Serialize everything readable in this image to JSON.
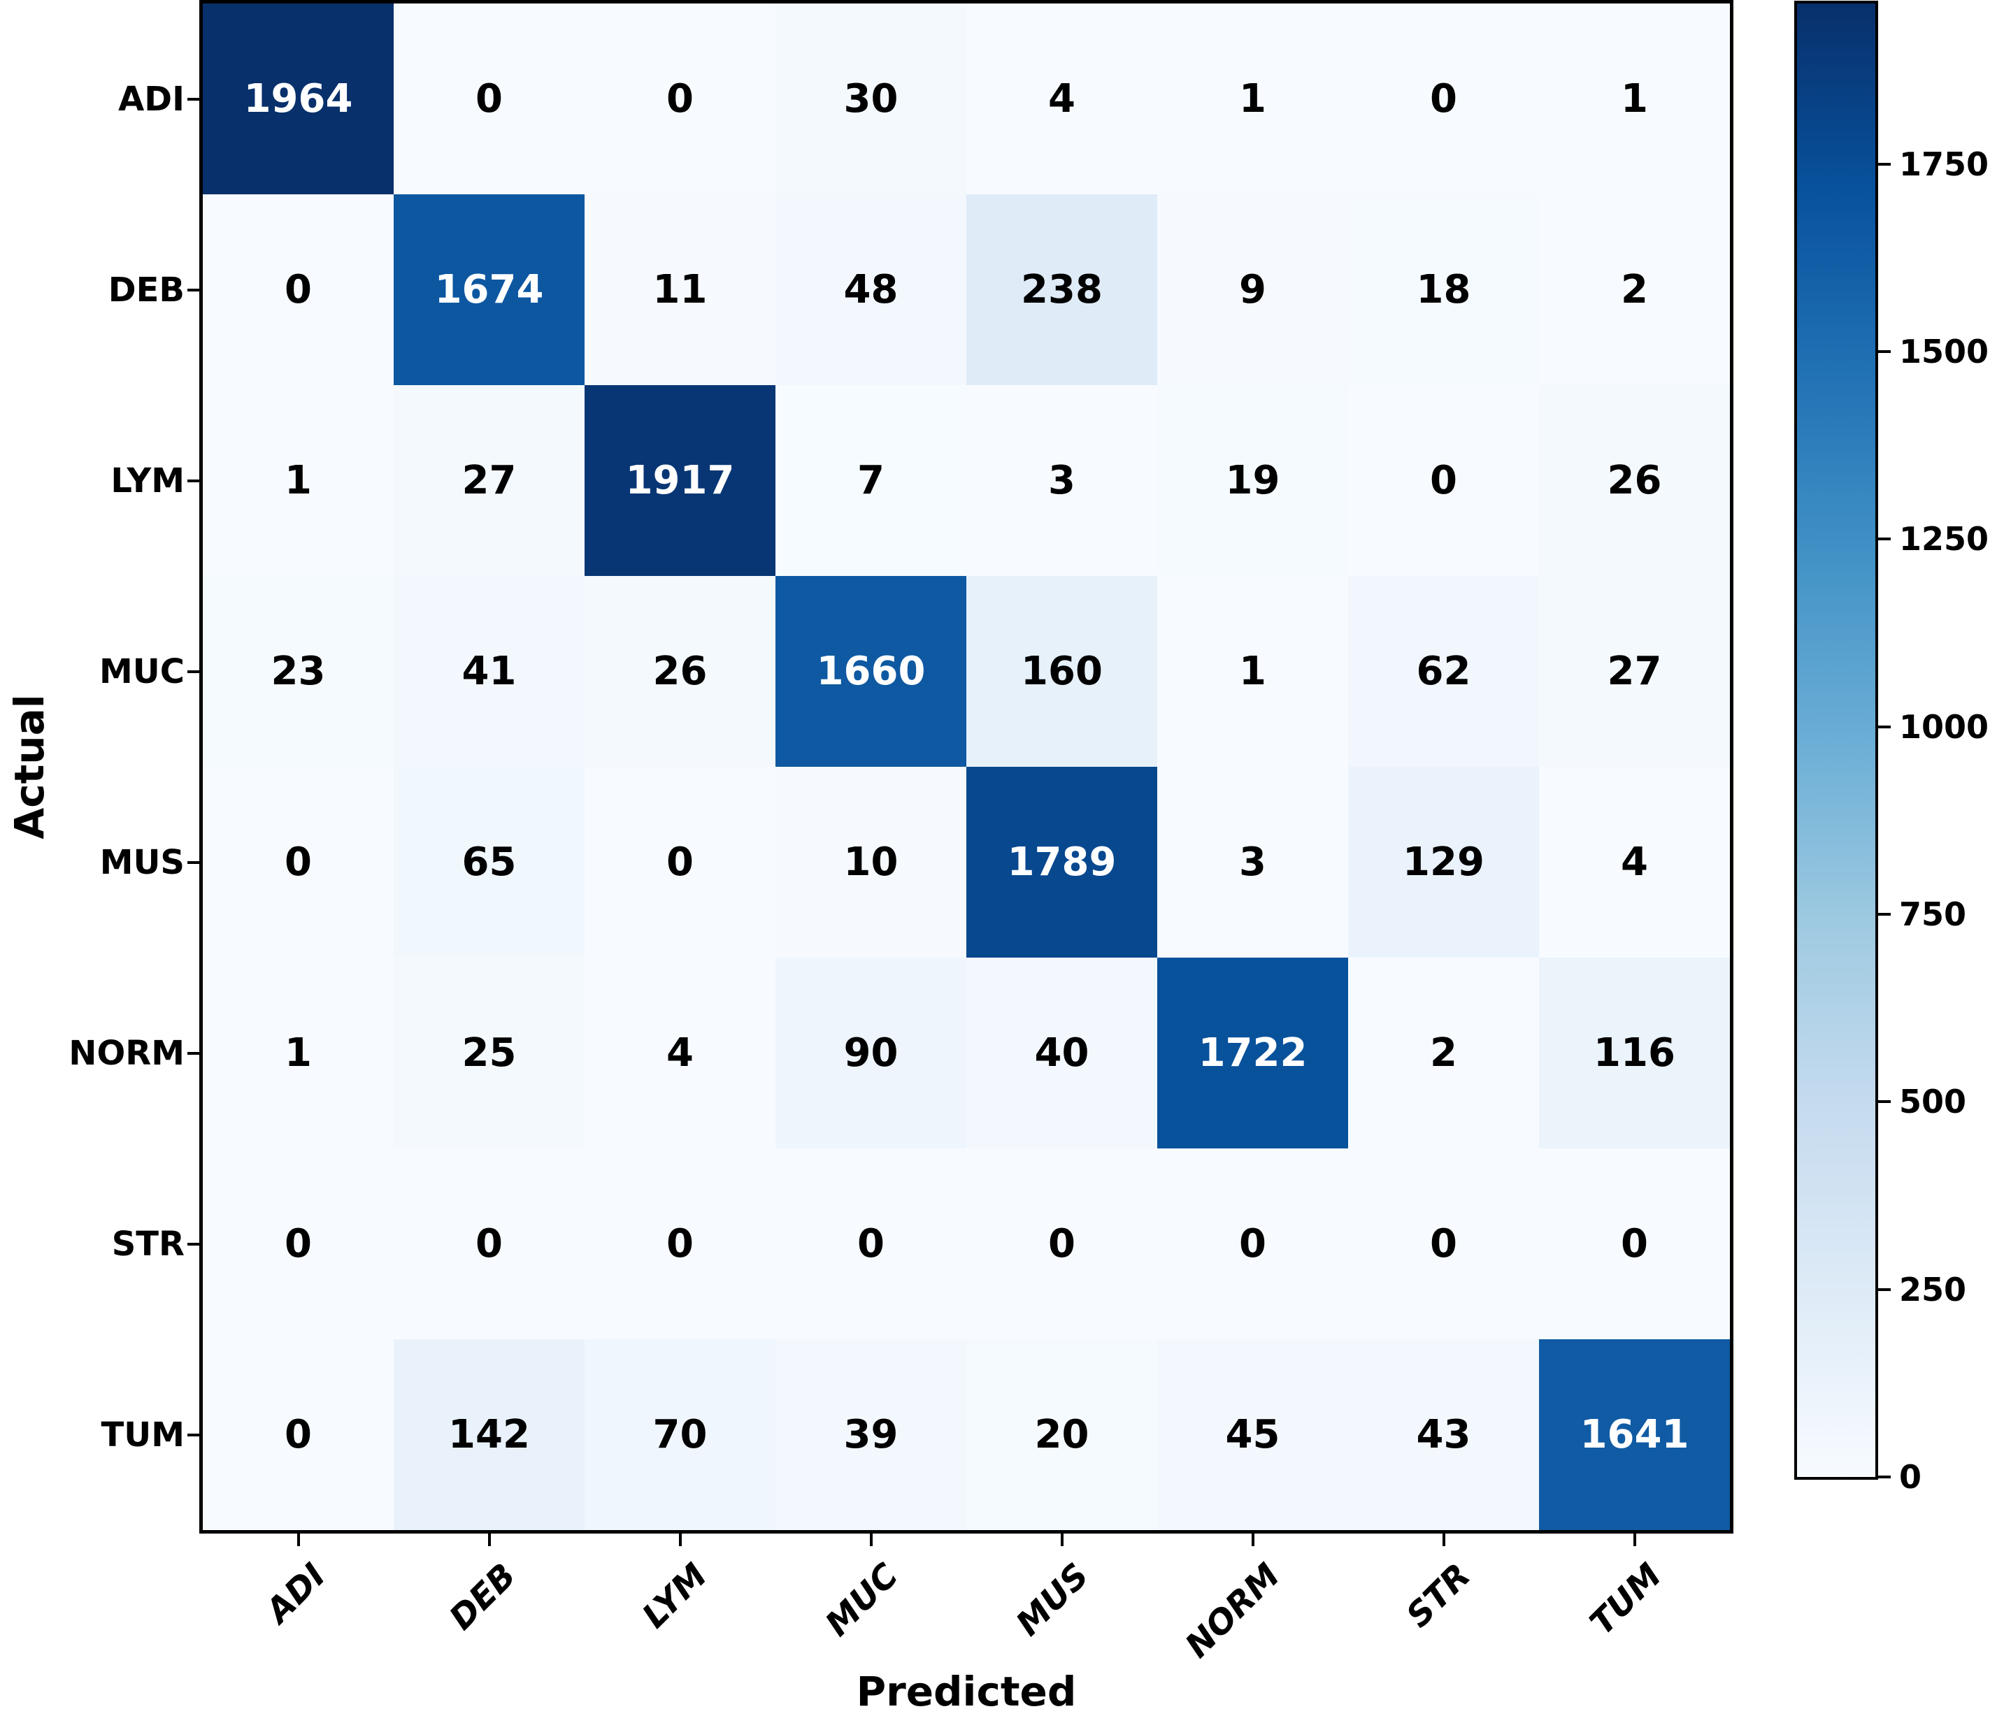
{
  "chart_data": {
    "type": "heatmap",
    "xlabel": "Predicted",
    "ylabel": "Actual",
    "x_categories": [
      "ADI",
      "DEB",
      "LYM",
      "MUC",
      "MUS",
      "NORM",
      "STR",
      "TUM"
    ],
    "y_categories": [
      "ADI",
      "DEB",
      "LYM",
      "MUC",
      "MUS",
      "NORM",
      "STR",
      "TUM"
    ],
    "matrix": [
      [
        1964,
        0,
        0,
        30,
        4,
        1,
        0,
        1
      ],
      [
        0,
        1674,
        11,
        48,
        238,
        9,
        18,
        2
      ],
      [
        1,
        27,
        1917,
        7,
        3,
        19,
        0,
        26
      ],
      [
        23,
        41,
        26,
        1660,
        160,
        1,
        62,
        27
      ],
      [
        0,
        65,
        0,
        10,
        1789,
        3,
        129,
        4
      ],
      [
        1,
        25,
        4,
        90,
        40,
        1722,
        2,
        116
      ],
      [
        0,
        0,
        0,
        0,
        0,
        0,
        0,
        0
      ],
      [
        0,
        142,
        70,
        39,
        20,
        45,
        43,
        1641
      ]
    ],
    "vmin": 0,
    "vmax": 1964,
    "colormap": "Blues",
    "colormap_stops": [
      "#f7fbff",
      "#deebf7",
      "#c6dbef",
      "#9ecae1",
      "#6baed6",
      "#4292c6",
      "#2171b5",
      "#08519c",
      "#08306b"
    ],
    "colorbar_ticks": [
      0,
      250,
      500,
      750,
      1000,
      1250,
      1500,
      1750
    ],
    "annotation_colors": {
      "on_dark": "#ffffff",
      "on_light": "#000000"
    },
    "grid": "off",
    "legend_position": "colorbar-right"
  }
}
